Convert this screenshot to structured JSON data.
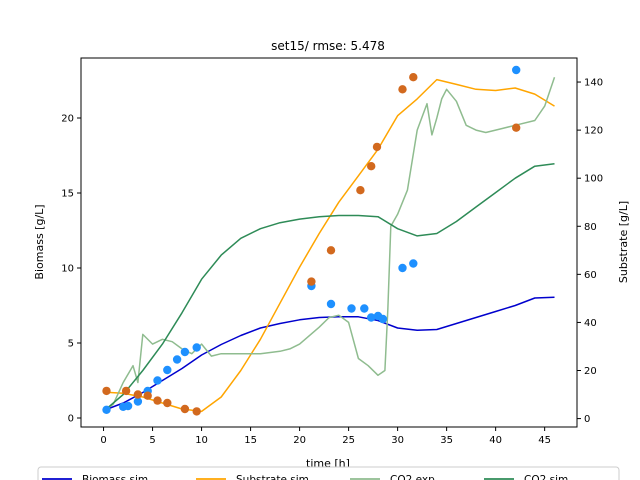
{
  "chart_data": {
    "type": "line",
    "title": "set15/ rmse: 5.478",
    "xlabel": "time [h]",
    "ylabel": "Biomass [g/L]",
    "y2label": "Substrate [g/L]",
    "xlim": [
      -2.3,
      48.3
    ],
    "ylim": [
      -0.6,
      24.0
    ],
    "y2lim": [
      -3.5,
      150.0
    ],
    "xticks": [
      0,
      5,
      10,
      15,
      20,
      25,
      30,
      35,
      40,
      45
    ],
    "yticks": [
      0,
      5,
      10,
      15,
      20
    ],
    "y2ticks": [
      0,
      20,
      40,
      60,
      80,
      100,
      120,
      140
    ],
    "legend_position": "bottom",
    "colors": {
      "biomass_sim": "#0000cd",
      "substrate_sim": "#ffa500",
      "co2_exp": "#8fbc8f",
      "co2_sim": "#2e8b57",
      "biomass_exp": "#1e90ff",
      "substrate_exp": "#d2691e"
    },
    "series": [
      {
        "name": "Biomass sim",
        "axis": "left",
        "style": "line",
        "color": "#0000cd",
        "x": [
          0,
          2,
          4,
          6,
          8,
          10,
          12,
          14,
          16,
          18,
          20,
          22,
          24,
          26,
          28,
          30,
          32,
          34,
          36,
          38,
          40,
          42,
          44,
          46
        ],
        "y": [
          0.5,
          1.0,
          1.7,
          2.5,
          3.3,
          4.2,
          4.9,
          5.5,
          6.0,
          6.3,
          6.55,
          6.7,
          6.75,
          6.75,
          6.5,
          6.0,
          5.85,
          5.9,
          6.3,
          6.7,
          7.1,
          7.5,
          8.0,
          8.05
        ]
      },
      {
        "name": "Substrate sim",
        "axis": "right",
        "style": "line",
        "color": "#ffa500",
        "x": [
          0,
          2,
          4,
          6,
          8,
          10,
          12,
          14,
          16,
          18,
          20,
          22,
          24,
          26,
          28,
          30,
          32,
          34,
          36,
          38,
          40,
          42,
          44,
          46
        ],
        "y": [
          11,
          10.5,
          9,
          6.5,
          4,
          3,
          9,
          20,
          33,
          48,
          63,
          77,
          90,
          101,
          112,
          126,
          133,
          141,
          139,
          137,
          136.5,
          137.5,
          135,
          130
        ]
      },
      {
        "name": "CO2 exp",
        "axis": "right",
        "style": "line",
        "color": "#8fbc8f",
        "x": [
          0,
          1,
          2,
          3,
          3.5,
          4,
          5,
          6,
          7,
          8,
          9,
          10,
          11,
          12,
          14,
          16,
          18,
          19,
          20,
          22,
          23,
          24,
          25,
          26,
          27,
          28,
          28.7,
          29,
          29.3,
          30,
          31,
          32,
          33,
          33.5,
          34,
          34.5,
          35,
          36,
          37,
          38,
          39,
          40,
          42,
          44,
          45,
          46
        ],
        "y": [
          3,
          6,
          15,
          22,
          15,
          35,
          31,
          33,
          32,
          29,
          27,
          31,
          26,
          27,
          27,
          27,
          28,
          29,
          31,
          38,
          42,
          43,
          40,
          25,
          22,
          18,
          20,
          45,
          80,
          85,
          95,
          120,
          131,
          118,
          125,
          133,
          137,
          132,
          122,
          120,
          119,
          120,
          122,
          124,
          130,
          142
        ]
      },
      {
        "name": "CO2 sim",
        "axis": "right",
        "style": "line",
        "color": "#2e8b57",
        "x": [
          0,
          2,
          4,
          6,
          8,
          10,
          12,
          14,
          16,
          18,
          20,
          22,
          24,
          26,
          28,
          30,
          32,
          34,
          36,
          38,
          40,
          42,
          44,
          46
        ],
        "y": [
          3,
          10,
          20,
          31,
          44,
          58,
          68,
          75,
          79,
          81.5,
          83,
          84,
          84.5,
          84.5,
          84,
          79,
          76,
          77,
          82,
          88,
          94,
          100,
          105,
          106
        ]
      },
      {
        "name": "Biomass exp",
        "axis": "left",
        "style": "scatter",
        "color": "#1e90ff",
        "x": [
          0.3,
          2.0,
          2.5,
          3.5,
          4.5,
          5.5,
          6.5,
          7.5,
          8.3,
          9.5,
          21.2,
          23.2,
          25.3,
          26.6,
          27.3,
          28,
          28.5,
          30.5,
          31.6,
          42.1
        ],
        "y": [
          0.55,
          0.75,
          0.8,
          1.1,
          1.8,
          2.5,
          3.2,
          3.9,
          4.4,
          4.7,
          8.8,
          7.6,
          7.3,
          7.3,
          6.7,
          6.8,
          6.6,
          10.0,
          10.3,
          23.2
        ]
      },
      {
        "name": "Substrate exp",
        "axis": "right",
        "style": "scatter",
        "color": "#d2691e",
        "x": [
          0.3,
          2.3,
          3.5,
          4.5,
          5.5,
          6.5,
          8.3,
          9.5,
          21.2,
          23.2,
          26.2,
          27.3,
          27.9,
          30.5,
          31.6,
          42.1
        ],
        "y": [
          11.5,
          11.5,
          10,
          9.5,
          7.5,
          6.5,
          4,
          3,
          57,
          70,
          95,
          105,
          113,
          137,
          142,
          121
        ]
      }
    ],
    "legend": [
      {
        "label": "Biomass sim",
        "color": "#0000cd"
      },
      {
        "label": "Substrate sim",
        "color": "#ffa500"
      },
      {
        "label": "CO2 exp",
        "color": "#8fbc8f"
      },
      {
        "label": "CO2 sim",
        "color": "#2e8b57"
      }
    ]
  }
}
